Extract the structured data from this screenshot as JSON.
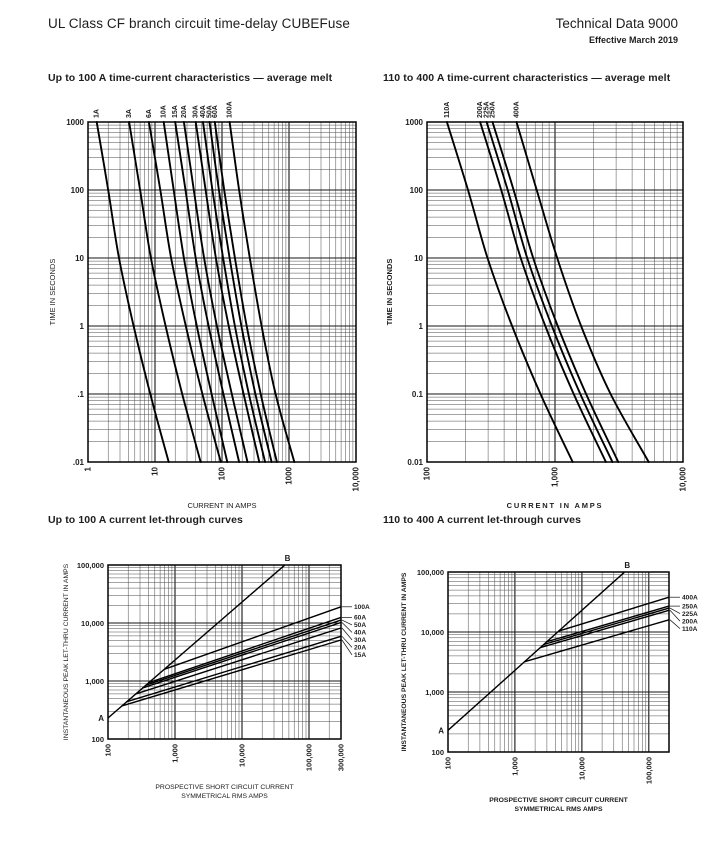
{
  "header": {
    "title": "UL Class CF branch circuit time-delay CUBEFuse",
    "doc_number": "Technical Data 9000",
    "effective": "Effective March 2019"
  },
  "sections": {
    "tc_small_title": "Up to 100 A time-current characteristics — average melt",
    "tc_large_title": "110 to 400 A time-current characteristics — average melt",
    "lt_small_title": "Up to 100 A current let-through curves",
    "lt_large_title": "110 to 400 A current let-through curves"
  },
  "colors": {
    "ink": "#1d1d1d",
    "grid_major": "#151515",
    "grid_minor": "#4a4a4a",
    "curve": "#000000"
  },
  "chart_data": {
    "tc_small": {
      "type": "line",
      "title": "Up to 100 A time-current characteristics — average melt",
      "xlabel": "CURRENT IN AMPS",
      "ylabel": "TIME IN SECONDS",
      "xlim": [
        1,
        10000
      ],
      "ylim": [
        0.01,
        1000
      ],
      "grid": "log-log",
      "xticks": [
        {
          "v": 1,
          "t": "1"
        },
        {
          "v": 10,
          "t": "10"
        },
        {
          "v": 100,
          "t": "100"
        },
        {
          "v": 1000,
          "t": "1000"
        },
        {
          "v": 10000,
          "t": "10,000"
        }
      ],
      "yticks": [
        {
          "v": 1000,
          "t": "1000"
        },
        {
          "v": 100,
          "t": "100"
        },
        {
          "v": 10,
          "t": "10"
        },
        {
          "v": 1,
          "t": "1"
        },
        {
          "v": 0.1,
          "t": ".1"
        },
        {
          "v": 0.01,
          "t": ".01"
        }
      ],
      "series": [
        {
          "name": "1A",
          "points": [
            [
              1.35,
              1000
            ],
            [
              2.0,
              100
            ],
            [
              2.9,
              10
            ],
            [
              4.8,
              1
            ],
            [
              8.5,
              0.1
            ],
            [
              16,
              0.01
            ]
          ]
        },
        {
          "name": "3A",
          "points": [
            [
              4.1,
              1000
            ],
            [
              6.0,
              100
            ],
            [
              8.7,
              10
            ],
            [
              14.4,
              1
            ],
            [
              25.5,
              0.1
            ],
            [
              48,
              0.01
            ]
          ]
        },
        {
          "name": "6A",
          "points": [
            [
              8.1,
              1000
            ],
            [
              12,
              100
            ],
            [
              17.4,
              10
            ],
            [
              28.8,
              1
            ],
            [
              51,
              0.1
            ],
            [
              96,
              0.01
            ]
          ]
        },
        {
          "name": "10A",
          "points": [
            [
              13.5,
              1000
            ],
            [
              19,
              100
            ],
            [
              27,
              10
            ],
            [
              42,
              1
            ],
            [
              70,
              0.1
            ],
            [
              120,
              0.01
            ]
          ]
        },
        {
          "name": "15A",
          "points": [
            [
              20,
              1000
            ],
            [
              28.5,
              100
            ],
            [
              40.5,
              10
            ],
            [
              63,
              1
            ],
            [
              105,
              0.1
            ],
            [
              180,
              0.01
            ]
          ]
        },
        {
          "name": "20A",
          "points": [
            [
              27,
              1000
            ],
            [
              38,
              100
            ],
            [
              54,
              10
            ],
            [
              84,
              1
            ],
            [
              140,
              0.1
            ],
            [
              240,
              0.01
            ]
          ]
        },
        {
          "name": "30A",
          "points": [
            [
              40.5,
              1000
            ],
            [
              57,
              100
            ],
            [
              81,
              10
            ],
            [
              126,
              1
            ],
            [
              210,
              0.1
            ],
            [
              360,
              0.01
            ]
          ]
        },
        {
          "name": "40A",
          "points": [
            [
              52,
              1000
            ],
            [
              72,
              100
            ],
            [
              104,
              10
            ],
            [
              156,
              1
            ],
            [
              252,
              0.1
            ],
            [
              440,
              0.01
            ]
          ]
        },
        {
          "name": "50A",
          "points": [
            [
              65,
              1000
            ],
            [
              90,
              100
            ],
            [
              130,
              10
            ],
            [
              195,
              1
            ],
            [
              315,
              0.1
            ],
            [
              550,
              0.01
            ]
          ]
        },
        {
          "name": "60A",
          "points": [
            [
              78,
              1000
            ],
            [
              108,
              100
            ],
            [
              156,
              10
            ],
            [
              234,
              1
            ],
            [
              378,
              0.1
            ],
            [
              660,
              0.01
            ]
          ]
        },
        {
          "name": "100A",
          "points": [
            [
              130,
              1000
            ],
            [
              180,
              100
            ],
            [
              260,
              10
            ],
            [
              390,
              1
            ],
            [
              630,
              0.1
            ],
            [
              1200,
              0.01
            ]
          ]
        }
      ]
    },
    "tc_large": {
      "type": "line",
      "title": "110 to 400 A time-current characteristics — average melt",
      "xlabel": "CURRENT IN AMPS",
      "ylabel": "TIME IN SECONDS",
      "xlim": [
        100,
        10000
      ],
      "ylim": [
        0.01,
        1000
      ],
      "grid": "log-log",
      "xticks": [
        {
          "v": 100,
          "t": "100"
        },
        {
          "v": 1000,
          "t": "1,000"
        },
        {
          "v": 10000,
          "t": "10,000"
        }
      ],
      "yticks": [
        {
          "v": 1000,
          "t": "1000"
        },
        {
          "v": 100,
          "t": "100"
        },
        {
          "v": 10,
          "t": "10"
        },
        {
          "v": 1,
          "t": "1"
        },
        {
          "v": 0.1,
          "t": "0.1"
        },
        {
          "v": 0.01,
          "t": "0.01"
        }
      ],
      "series": [
        {
          "name": "110A",
          "points": [
            [
              143,
              1000
            ],
            [
              209,
              100
            ],
            [
              297,
              10
            ],
            [
              462,
              1
            ],
            [
              770,
              0.1
            ],
            [
              1375,
              0.01
            ]
          ]
        },
        {
          "name": "200A",
          "points": [
            [
              260,
              1000
            ],
            [
              380,
              100
            ],
            [
              540,
              10
            ],
            [
              840,
              1
            ],
            [
              1400,
              0.1
            ],
            [
              2500,
              0.01
            ]
          ]
        },
        {
          "name": "225A",
          "points": [
            [
              292,
              1000
            ],
            [
              427,
              100
            ],
            [
              607,
              10
            ],
            [
              945,
              1
            ],
            [
              1575,
              0.1
            ],
            [
              2810,
              0.01
            ]
          ]
        },
        {
          "name": "250A",
          "points": [
            [
              325,
              1000
            ],
            [
              475,
              100
            ],
            [
              675,
              10
            ],
            [
              1050,
              1
            ],
            [
              1750,
              0.1
            ],
            [
              3125,
              0.01
            ]
          ]
        },
        {
          "name": "400A",
          "points": [
            [
              500,
              1000
            ],
            [
              720,
              100
            ],
            [
              1040,
              10
            ],
            [
              1600,
              1
            ],
            [
              2720,
              0.1
            ],
            [
              5400,
              0.01
            ]
          ]
        }
      ]
    },
    "lt_small": {
      "type": "line",
      "title": "Up to 100 A current let-through curves",
      "xlabel": [
        "PROSPECTIVE SHORT CIRCUIT CURRENT",
        "SYMMETRICAL RMS AMPS"
      ],
      "ylabel": "INSTANTANEOUS PEAK LET-THRU CURRENT IN AMPS",
      "xlim": [
        100,
        300000
      ],
      "ylim": [
        100,
        100000
      ],
      "grid": "log-log",
      "xticks": [
        {
          "v": 100,
          "t": "100"
        },
        {
          "v": 1000,
          "t": "1,000"
        },
        {
          "v": 10000,
          "t": "10,000"
        },
        {
          "v": 100000,
          "t": "100,000"
        },
        {
          "v": 300000,
          "t": "300,000"
        }
      ],
      "yticks": [
        {
          "v": 100,
          "t": "100"
        },
        {
          "v": 1000,
          "t": "1,000"
        },
        {
          "v": 10000,
          "t": "10,000"
        },
        {
          "v": 100000,
          "t": "100,000"
        }
      ],
      "diagonal": {
        "a": [
          100,
          230
        ],
        "b": [
          43000,
          99000
        ],
        "a_label": "A",
        "b_label": "B"
      },
      "series": [
        {
          "name": "100A",
          "points": [
            [
              700,
              1600
            ],
            [
              300000,
              19000
            ]
          ]
        },
        {
          "name": "60A",
          "points": [
            [
              420,
              950
            ],
            [
              300000,
              12500
            ]
          ]
        },
        {
          "name": "50A",
          "points": [
            [
              370,
              850
            ],
            [
              300000,
              11200
            ]
          ]
        },
        {
          "name": "40A",
          "points": [
            [
              330,
              760
            ],
            [
              300000,
              10200
            ]
          ]
        },
        {
          "name": "30A",
          "points": [
            [
              260,
              600
            ],
            [
              300000,
              8200
            ]
          ]
        },
        {
          "name": "20A",
          "points": [
            [
              190,
              440
            ],
            [
              300000,
              5900
            ]
          ]
        },
        {
          "name": "15A",
          "points": [
            [
              160,
              370
            ],
            [
              300000,
              5100
            ]
          ]
        }
      ]
    },
    "lt_large": {
      "type": "line",
      "title": "110 to 400 A current let-through curves",
      "xlabel": [
        "PROSPECTIVE SHORT CIRCUIT CURRENT",
        "SYMMETRICAL RMS AMPS"
      ],
      "ylabel": "INSTANTANEOUS PEAK LET-THRU CURRENT IN AMPS",
      "xlim": [
        100,
        200000
      ],
      "ylim": [
        100,
        100000
      ],
      "grid": "log-log",
      "xticks": [
        {
          "v": 100,
          "t": "100"
        },
        {
          "v": 1000,
          "t": "1,000"
        },
        {
          "v": 10000,
          "t": "10,000"
        },
        {
          "v": 100000,
          "t": "100,000"
        }
      ],
      "yticks": [
        {
          "v": 100,
          "t": "100"
        },
        {
          "v": 1000,
          "t": "1,000"
        },
        {
          "v": 10000,
          "t": "10,000"
        },
        {
          "v": 100000,
          "t": "100,000"
        }
      ],
      "diagonal": {
        "a": [
          100,
          230
        ],
        "b": [
          43000,
          99000
        ],
        "a_label": "A",
        "b_label": "B"
      },
      "series": [
        {
          "name": "400A",
          "points": [
            [
              4500,
              10350
            ],
            [
              200000,
              38000
            ]
          ]
        },
        {
          "name": "250A",
          "points": [
            [
              3000,
              6900
            ],
            [
              200000,
              27000
            ]
          ]
        },
        {
          "name": "225A",
          "points": [
            [
              2700,
              6200
            ],
            [
              200000,
              25000
            ]
          ]
        },
        {
          "name": "200A",
          "points": [
            [
              2400,
              5500
            ],
            [
              200000,
              23000
            ]
          ]
        },
        {
          "name": "110A",
          "points": [
            [
              1400,
              3200
            ],
            [
              200000,
              16000
            ]
          ]
        }
      ]
    }
  }
}
